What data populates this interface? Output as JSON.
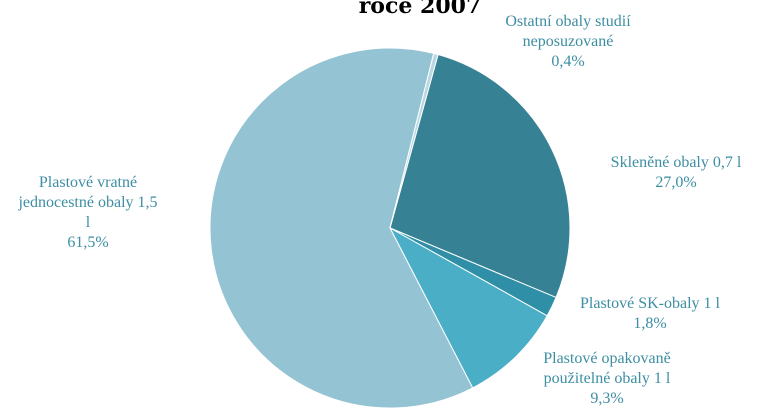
{
  "chart_data": {
    "type": "pie",
    "title": "roce 2007",
    "label_color": "#3d8ea3",
    "slices": [
      {
        "label_lines": [
          "Skleněné obaly 0,7 l"
        ],
        "percent_label": "27,0%",
        "value": 27.0,
        "color": "#368294"
      },
      {
        "label_lines": [
          "Plastové SK-obaly 1 l"
        ],
        "percent_label": "1,8%",
        "value": 1.8,
        "color": "#2f8fa6"
      },
      {
        "label_lines": [
          "Plastové opakovaně",
          "použitelné obaly 1 l"
        ],
        "percent_label": "9,3%",
        "value": 9.3,
        "color": "#4aaec6"
      },
      {
        "label_lines": [
          "Plastové vratné",
          "jednocestné obaly 1,5",
          "l"
        ],
        "percent_label": "61,5%",
        "value": 61.5,
        "color": "#94c3d4"
      },
      {
        "label_lines": [
          "Ostatní obaly studií",
          "neposuzované"
        ],
        "percent_label": "0,4%",
        "value": 0.4,
        "color": "#b9d8e3"
      }
    ]
  }
}
